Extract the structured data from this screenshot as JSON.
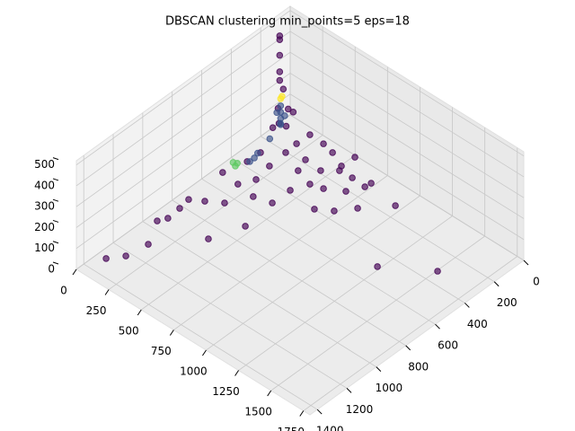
{
  "chart_data": {
    "type": "scatter3d",
    "title": "DBSCAN clustering min_points=5 eps=18",
    "xlim": [
      0,
      1800
    ],
    "ylim": [
      0,
      1450
    ],
    "zlim": [
      0,
      520
    ],
    "xticks": [
      0,
      250,
      500,
      750,
      1000,
      1250,
      1500,
      1750
    ],
    "yticks": [
      0,
      200,
      400,
      600,
      800,
      1000,
      1200,
      1400
    ],
    "zticks": [
      0,
      100,
      200,
      300,
      400,
      500
    ],
    "grid": true,
    "series": [
      {
        "color": "#440154",
        "x": [
          61,
          128,
          154,
          372,
          1230,
          1505,
          57,
          86,
          78,
          452,
          640,
          732,
          814,
          955,
          430,
          315,
          233,
          141,
          180,
          50,
          64,
          432,
          478,
          560,
          668,
          721,
          726,
          617,
          523,
          445,
          352,
          510,
          505,
          320,
          207,
          229,
          303,
          195,
          391,
          197,
          93,
          89,
          191,
          10,
          10,
          10,
          10,
          10,
          15,
          20,
          30,
          50,
          25,
          60,
          80
        ],
        "y": [
          1302,
          1227,
          1098,
          882,
          491,
          325,
          952,
          905,
          818,
          702,
          399,
          346,
          259,
          127,
          500,
          528,
          650,
          703,
          513,
          502,
          745,
          380,
          287,
          267,
          210,
          128,
          90,
          122,
          126,
          185,
          256,
          10,
          97,
          178,
          323,
          433,
          41,
          38,
          57,
          204,
          283,
          370,
          125,
          80,
          80,
          80,
          80,
          80,
          60,
          100,
          40,
          120,
          140,
          80,
          50
        ],
        "z": [
          0,
          0,
          0,
          0,
          0,
          0,
          0,
          0,
          0,
          0,
          0,
          0,
          0,
          0,
          0,
          0,
          0,
          0,
          0,
          0,
          0,
          0,
          0,
          0,
          0,
          0,
          0,
          0,
          0,
          0,
          0,
          0,
          0,
          0,
          0,
          0,
          0,
          0,
          0,
          0,
          0,
          0,
          0,
          423,
          405,
          330,
          251,
          210,
          160,
          90,
          60,
          40,
          20,
          10,
          70
        ]
      },
      {
        "color": "#3b528b",
        "x": [
          40,
          40,
          40,
          40,
          50,
          60,
          100,
          110,
          90,
          70,
          45
        ],
        "y": [
          100,
          100,
          100,
          100,
          110,
          90,
          362,
          340,
          300,
          200,
          130
        ],
        "z": [
          20,
          50,
          80,
          110,
          35,
          65,
          0,
          10,
          5,
          15,
          95
        ]
      },
      {
        "color": "#5ec962",
        "x": [
          66,
          70,
          60
        ],
        "y": [
          430,
          420,
          440
        ],
        "z": [
          0,
          10,
          20
        ]
      },
      {
        "color": "#fde725",
        "x": [
          40,
          45
        ],
        "y": [
          100,
          95
        ],
        "z": [
          144,
          155
        ]
      }
    ]
  }
}
